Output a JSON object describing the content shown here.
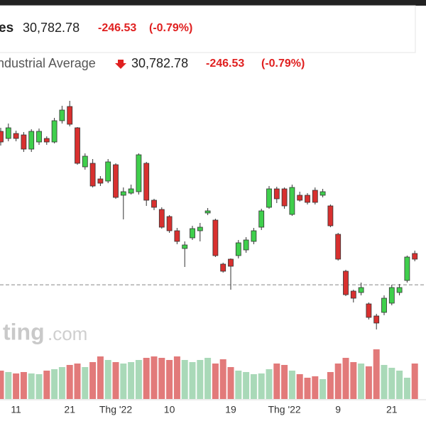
{
  "header": {
    "name": "es",
    "price": "30,782.78",
    "change": "-246.53",
    "change_pct": "(-0.79%)"
  },
  "chart_data": {
    "type": "candlestick",
    "title": "ndustrial Average",
    "price": "30,782.78",
    "change": "-246.53",
    "change_pct": "(-0.79%)",
    "watermark": [
      "ting",
      ".com"
    ],
    "categories": [
      null,
      null,
      "11",
      null,
      null,
      null,
      null,
      null,
      null,
      "21",
      null,
      null,
      null,
      null,
      null,
      "Thg '22",
      null,
      null,
      null,
      null,
      null,
      null,
      "10",
      null,
      null,
      null,
      null,
      null,
      null,
      null,
      "19",
      null,
      null,
      null,
      null,
      null,
      null,
      "Thg '22",
      null,
      null,
      null,
      null,
      null,
      null,
      "9",
      null,
      null,
      null,
      null,
      null,
      null,
      "21",
      null,
      null,
      null
    ],
    "open": [
      33190,
      33090,
      33160,
      33140,
      32940,
      33040,
      33090,
      33040,
      33340,
      33540,
      33240,
      32690,
      32740,
      32520,
      32490,
      32720,
      32290,
      32320,
      32340,
      32740,
      32220,
      32090,
      31990,
      31790,
      31540,
      31690,
      31790,
      32040,
      31940,
      31320,
      31390,
      31440,
      31520,
      31640,
      31840,
      32120,
      32380,
      32380,
      32020,
      32290,
      32290,
      32360,
      32290,
      32140,
      31740,
      31220,
      30940,
      30920,
      30760,
      30590,
      30640,
      30770,
      30920,
      31090,
      31470
    ],
    "high": [
      33240,
      33300,
      33200,
      33180,
      33220,
      33230,
      33120,
      33380,
      33550,
      33620,
      33250,
      32880,
      32800,
      32560,
      32800,
      32740,
      32400,
      32440,
      32880,
      32760,
      32240,
      32120,
      32010,
      31830,
      31640,
      31860,
      31900,
      32110,
      31960,
      31340,
      31400,
      31660,
      31700,
      31830,
      32100,
      32420,
      32410,
      32400,
      32440,
      32340,
      32320,
      32400,
      32380,
      32160,
      31760,
      31240,
      30960,
      31060,
      30780,
      30620,
      30880,
      31030,
      31040,
      31440,
      31510
    ],
    "low": [
      32990,
      33050,
      33050,
      32900,
      32900,
      33000,
      33000,
      33020,
      33300,
      33260,
      32720,
      32650,
      32400,
      32420,
      32460,
      32240,
      31950,
      32300,
      32300,
      32140,
      32080,
      31820,
      31760,
      31600,
      31280,
      31660,
      31640,
      32010,
      31420,
      31200,
      30960,
      31400,
      31480,
      31600,
      31800,
      32100,
      32180,
      32100,
      32000,
      32200,
      32160,
      32160,
      32260,
      31840,
      31370,
      30870,
      30780,
      30880,
      30540,
      30400,
      30600,
      30740,
      30880,
      31060,
      31360
    ],
    "close": [
      33040,
      33240,
      33090,
      32940,
      33190,
      33190,
      33040,
      33340,
      33490,
      33290,
      32740,
      32840,
      32420,
      32460,
      32760,
      32260,
      32340,
      32380,
      32860,
      32220,
      32120,
      31840,
      31790,
      31640,
      31590,
      31820,
      31840,
      32070,
      31440,
      31220,
      31290,
      31620,
      31660,
      31790,
      32070,
      32380,
      32240,
      32140,
      32400,
      32220,
      32190,
      32190,
      32340,
      31860,
      31390,
      30890,
      30840,
      30990,
      30570,
      30490,
      30840,
      30990,
      30990,
      31420,
      31390
    ],
    "volume": [
      240,
      228,
      216,
      228,
      216,
      210,
      240,
      252,
      270,
      288,
      300,
      270,
      312,
      360,
      330,
      312,
      300,
      312,
      330,
      348,
      360,
      348,
      330,
      360,
      330,
      312,
      330,
      348,
      300,
      336,
      270,
      240,
      228,
      210,
      216,
      252,
      300,
      288,
      240,
      210,
      180,
      192,
      168,
      228,
      300,
      348,
      312,
      300,
      276,
      420,
      288,
      264,
      240,
      180,
      300
    ],
    "up_color": "#3fcf4c",
    "down_color": "#d8302f",
    "up_volume_color": "#a9d9b8",
    "down_volume_color": "#e27a7a",
    "reference_line": 31029
  }
}
